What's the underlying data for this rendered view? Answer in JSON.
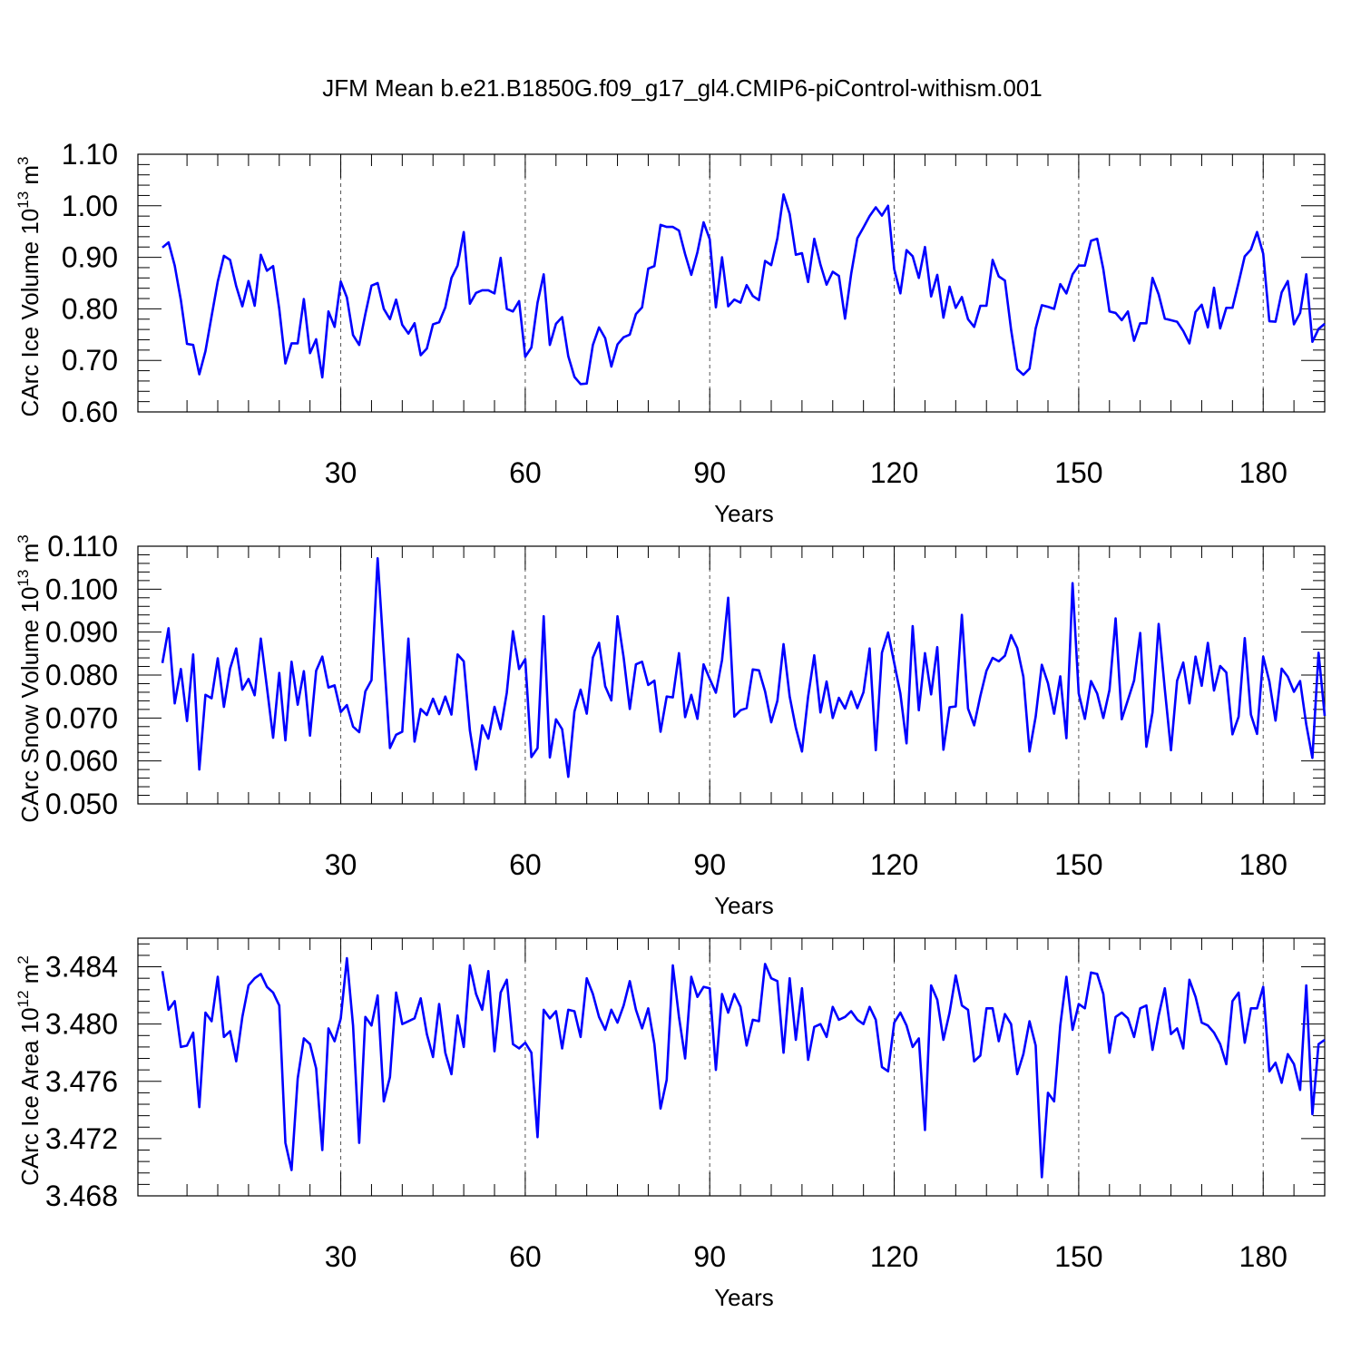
{
  "title": "JFM Mean b.e21.B1850G.f09_g17_gl4.CMIP6-piControl-withism.001",
  "chart_data": [
    {
      "type": "line",
      "name": "ice-volume",
      "ylabel": "CArc Ice Volume 10",
      "ylabel_exp": "13",
      "ylabel_unit": " m",
      "ylabel_unit_exp": "3",
      "xlabel": "Years",
      "xlim": [
        1,
        190
      ],
      "ylim": [
        0.6,
        1.1
      ],
      "yticks": [
        0.6,
        0.7,
        0.8,
        0.9,
        1.0,
        1.1
      ],
      "ytick_labels": [
        "0.60",
        "0.70",
        "0.80",
        "0.90",
        "1.00",
        "1.10"
      ],
      "xticks": [
        30,
        60,
        90,
        120,
        150,
        180
      ],
      "xtick_labels": [
        "30",
        "60",
        "90",
        "120",
        "150",
        "180"
      ],
      "grid_x": [
        30,
        60,
        90,
        120,
        150,
        180
      ],
      "color": "#0000ff",
      "x_start": 1,
      "values": [
        0.919,
        0.929,
        0.884,
        0.817,
        0.732,
        0.73,
        0.673,
        0.718,
        0.786,
        0.853,
        0.903,
        0.895,
        0.844,
        0.805,
        0.854,
        0.806,
        0.905,
        0.874,
        0.883,
        0.8,
        0.694,
        0.733,
        0.733,
        0.819,
        0.714,
        0.741,
        0.667,
        0.795,
        0.765,
        0.853,
        0.822,
        0.749,
        0.73,
        0.79,
        0.845,
        0.85,
        0.8,
        0.78,
        0.818,
        0.769,
        0.752,
        0.772,
        0.71,
        0.723,
        0.77,
        0.774,
        0.803,
        0.86,
        0.884,
        0.949,
        0.81,
        0.831,
        0.836,
        0.836,
        0.83,
        0.899,
        0.8,
        0.795,
        0.815,
        0.707,
        0.725,
        0.812,
        0.867,
        0.73,
        0.771,
        0.784,
        0.708,
        0.668,
        0.654,
        0.655,
        0.73,
        0.764,
        0.743,
        0.688,
        0.731,
        0.745,
        0.75,
        0.79,
        0.803,
        0.878,
        0.883,
        0.963,
        0.959,
        0.959,
        0.952,
        0.906,
        0.866,
        0.91,
        0.968,
        0.935,
        0.803,
        0.9,
        0.805,
        0.818,
        0.812,
        0.846,
        0.825,
        0.817,
        0.893,
        0.885,
        0.937,
        1.022,
        0.984,
        0.905,
        0.908,
        0.852,
        0.936,
        0.886,
        0.847,
        0.872,
        0.864,
        0.781,
        0.868,
        0.937,
        0.958,
        0.98,
        0.997,
        0.981,
        1.0,
        0.877,
        0.83,
        0.914,
        0.902,
        0.86,
        0.92,
        0.824,
        0.866,
        0.783,
        0.843,
        0.802,
        0.823,
        0.78,
        0.765,
        0.806,
        0.806,
        0.895,
        0.863,
        0.855,
        0.76,
        0.683,
        0.672,
        0.684,
        0.762,
        0.807,
        0.804,
        0.8,
        0.848,
        0.83,
        0.867,
        0.884,
        0.884,
        0.932,
        0.936,
        0.877,
        0.795,
        0.792,
        0.778,
        0.795,
        0.738,
        0.772,
        0.772,
        0.86,
        0.828,
        0.781,
        0.778,
        0.775,
        0.757,
        0.733,
        0.794,
        0.808,
        0.764,
        0.841,
        0.762,
        0.802,
        0.802,
        0.851,
        0.902,
        0.915,
        0.949,
        0.907,
        0.776,
        0.775,
        0.832,
        0.854,
        0.77,
        0.792,
        0.867,
        0.736,
        0.761,
        0.771
      ]
    },
    {
      "type": "line",
      "name": "snow-volume",
      "ylabel": "CArc Snow Volume 10",
      "ylabel_exp": "13",
      "ylabel_unit": " m",
      "ylabel_unit_exp": "3",
      "xlabel": "Years",
      "xlim": [
        1,
        190
      ],
      "ylim": [
        0.05,
        0.11
      ],
      "yticks": [
        0.05,
        0.06,
        0.07,
        0.08,
        0.09,
        0.1,
        0.11
      ],
      "ytick_labels": [
        "0.050",
        "0.060",
        "0.070",
        "0.080",
        "0.090",
        "0.100",
        "0.110"
      ],
      "xticks": [
        30,
        60,
        90,
        120,
        150,
        180
      ],
      "xtick_labels": [
        "30",
        "60",
        "90",
        "120",
        "150",
        "180"
      ],
      "grid_x": [
        30,
        60,
        90,
        120,
        150,
        180
      ],
      "color": "#0000ff",
      "x_start": 1,
      "values": [
        0.0828,
        0.0909,
        0.0734,
        0.0814,
        0.0693,
        0.0848,
        0.058,
        0.0754,
        0.0746,
        0.0839,
        0.0726,
        0.0815,
        0.0862,
        0.0766,
        0.0791,
        0.0753,
        0.0885,
        0.0771,
        0.0654,
        0.0805,
        0.0648,
        0.0831,
        0.0731,
        0.0809,
        0.0659,
        0.081,
        0.0843,
        0.0771,
        0.0776,
        0.0714,
        0.073,
        0.068,
        0.0667,
        0.0762,
        0.0788,
        0.1072,
        0.085,
        0.063,
        0.0661,
        0.0668,
        0.0885,
        0.0645,
        0.0721,
        0.0707,
        0.0745,
        0.0709,
        0.075,
        0.0708,
        0.0848,
        0.0832,
        0.0671,
        0.058,
        0.0683,
        0.0652,
        0.0726,
        0.0674,
        0.0759,
        0.0902,
        0.0814,
        0.0837,
        0.0609,
        0.063,
        0.0937,
        0.0608,
        0.0697,
        0.0674,
        0.0563,
        0.0715,
        0.0766,
        0.071,
        0.0841,
        0.0875,
        0.0774,
        0.0741,
        0.0937,
        0.0841,
        0.0721,
        0.0825,
        0.0831,
        0.0777,
        0.0787,
        0.0668,
        0.075,
        0.0748,
        0.0851,
        0.0702,
        0.0754,
        0.0698,
        0.0825,
        0.0791,
        0.0759,
        0.0835,
        0.098,
        0.0703,
        0.0718,
        0.0723,
        0.0813,
        0.0811,
        0.0762,
        0.069,
        0.074,
        0.0872,
        0.075,
        0.0677,
        0.0622,
        0.075,
        0.0846,
        0.0713,
        0.0785,
        0.07,
        0.0747,
        0.0722,
        0.0762,
        0.0723,
        0.076,
        0.0862,
        0.0625,
        0.0852,
        0.0899,
        0.0828,
        0.0757,
        0.0641,
        0.0914,
        0.0718,
        0.0851,
        0.0755,
        0.0865,
        0.0626,
        0.0725,
        0.0727,
        0.094,
        0.0722,
        0.0683,
        0.0751,
        0.081,
        0.084,
        0.0832,
        0.0845,
        0.0893,
        0.0863,
        0.0796,
        0.0622,
        0.0703,
        0.0824,
        0.0781,
        0.071,
        0.0797,
        0.0653,
        0.1014,
        0.0757,
        0.0698,
        0.0786,
        0.0757,
        0.07,
        0.0765,
        0.0932,
        0.0697,
        0.0742,
        0.0787,
        0.0898,
        0.0633,
        0.0713,
        0.0919,
        0.0767,
        0.0625,
        0.0787,
        0.0829,
        0.0734,
        0.0843,
        0.0775,
        0.0875,
        0.0764,
        0.0821,
        0.0806,
        0.0662,
        0.0703,
        0.0886,
        0.0708,
        0.0663,
        0.0843,
        0.0785,
        0.0694,
        0.0815,
        0.0796,
        0.0761,
        0.0786,
        0.0685,
        0.0607,
        0.0852,
        0.0705
      ]
    },
    {
      "type": "line",
      "name": "ice-area",
      "ylabel": "CArc Ice Area 10",
      "ylabel_exp": "12",
      "ylabel_unit": " m",
      "ylabel_unit_exp": "2",
      "xlabel": "Years",
      "xlim": [
        1,
        190
      ],
      "ylim": [
        3.468,
        3.486
      ],
      "yticks": [
        3.468,
        3.472,
        3.476,
        3.48,
        3.484
      ],
      "ytick_labels": [
        "3.468",
        "3.472",
        "3.476",
        "3.480",
        "3.484"
      ],
      "xticks": [
        30,
        60,
        90,
        120,
        150,
        180
      ],
      "xtick_labels": [
        "30",
        "60",
        "90",
        "120",
        "150",
        "180"
      ],
      "grid_x": [
        30,
        60,
        90,
        120,
        150,
        180
      ],
      "color": "#0000ff",
      "x_start": 1,
      "values": [
        3.4837,
        3.481,
        3.4816,
        3.4784,
        3.4785,
        3.4794,
        3.4742,
        3.4808,
        3.4802,
        3.4833,
        3.4791,
        3.4795,
        3.4774,
        3.4805,
        3.4827,
        3.4832,
        3.4835,
        3.4826,
        3.4822,
        3.4813,
        3.4717,
        3.4698,
        3.4762,
        3.479,
        3.4786,
        3.4769,
        3.4712,
        3.4797,
        3.4788,
        3.4804,
        3.4846,
        3.4799,
        3.4717,
        3.4805,
        3.4799,
        3.482,
        3.4746,
        3.4763,
        3.4822,
        3.48,
        3.4802,
        3.4804,
        3.4818,
        3.4793,
        3.4777,
        3.4814,
        3.478,
        3.4765,
        3.4806,
        3.4784,
        3.4841,
        3.4821,
        3.481,
        3.4837,
        3.4781,
        3.4822,
        3.4831,
        3.4786,
        3.4783,
        3.4787,
        3.478,
        3.4721,
        3.481,
        3.4804,
        3.4809,
        3.4783,
        3.481,
        3.4809,
        3.4791,
        3.4832,
        3.4821,
        3.4805,
        3.4796,
        3.481,
        3.4801,
        3.4813,
        3.483,
        3.481,
        3.4797,
        3.4811,
        3.4786,
        3.4741,
        3.4761,
        3.4841,
        3.4805,
        3.4776,
        3.4833,
        3.4819,
        3.4826,
        3.4825,
        3.4768,
        3.4821,
        3.4808,
        3.4821,
        3.4812,
        3.4785,
        3.4803,
        3.4802,
        3.4842,
        3.4832,
        3.483,
        3.478,
        3.4832,
        3.4789,
        3.4825,
        3.4775,
        3.4798,
        3.48,
        3.4791,
        3.4812,
        3.4803,
        3.4805,
        3.4809,
        3.4803,
        3.48,
        3.4812,
        3.4803,
        3.477,
        3.4767,
        3.4801,
        3.4808,
        3.4799,
        3.4784,
        3.479,
        3.4726,
        3.4827,
        3.4817,
        3.4789,
        3.4808,
        3.4834,
        3.4813,
        3.481,
        3.4774,
        3.4778,
        3.4811,
        3.4811,
        3.4788,
        3.4807,
        3.48,
        3.4765,
        3.4779,
        3.4802,
        3.4785,
        3.4693,
        3.4752,
        3.4746,
        3.4799,
        3.4833,
        3.4796,
        3.4814,
        3.4811,
        3.4836,
        3.4835,
        3.4821,
        3.478,
        3.4805,
        3.4808,
        3.4804,
        3.4791,
        3.4811,
        3.4813,
        3.4782,
        3.4806,
        3.4825,
        3.4793,
        3.4797,
        3.4783,
        3.4831,
        3.4819,
        3.4801,
        3.4799,
        3.4794,
        3.4786,
        3.4772,
        3.4816,
        3.4822,
        3.4787,
        3.4811,
        3.4811,
        3.4826,
        3.4767,
        3.4773,
        3.4759,
        3.4779,
        3.4772,
        3.4754,
        3.4827,
        3.4737,
        3.4786,
        3.4789
      ]
    }
  ]
}
